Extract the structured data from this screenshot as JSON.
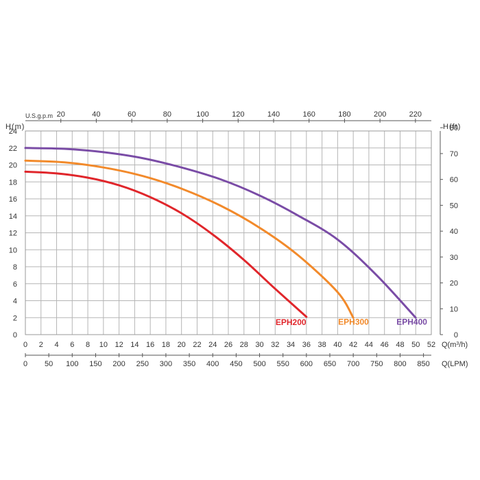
{
  "chart_data": {
    "type": "line",
    "title": "",
    "axes": {
      "bottom_flow": {
        "unit_label": "Q(m",
        "unit_sup": "3",
        "unit_tail": "/h)",
        "min": 0,
        "max": 52,
        "step": 2,
        "ticks": [
          "0",
          "2",
          "4",
          "6",
          "8",
          "10",
          "12",
          "14",
          "16",
          "18",
          "20",
          "22",
          "24",
          "26",
          "28",
          "30",
          "32",
          "34",
          "36",
          "38",
          "40",
          "42",
          "44",
          "46",
          "48",
          "50",
          "52"
        ]
      },
      "bottom_lpm": {
        "unit_label": "Q(LPM)",
        "ticks": [
          "0",
          "50",
          "100",
          "150",
          "200",
          "250",
          "300",
          "350",
          "400",
          "450",
          "500",
          "550",
          "600",
          "650",
          "700",
          "750",
          "800",
          "850"
        ]
      },
      "top_gpm": {
        "unit_label": "U.S.g.p.m",
        "ticks": [
          "20",
          "40",
          "60",
          "80",
          "100",
          "120",
          "140",
          "160",
          "180",
          "200",
          "220"
        ]
      },
      "left_head_m": {
        "unit_label": "H(m)",
        "min": 0,
        "max": 24,
        "step": 2,
        "ticks": [
          "0",
          "2",
          "4",
          "6",
          "8",
          "10",
          "12",
          "14",
          "16",
          "18",
          "20",
          "22",
          "24"
        ]
      },
      "right_head_ft": {
        "unit_label": "H(ft)",
        "ticks": [
          "0",
          "10",
          "20",
          "30",
          "40",
          "50",
          "60",
          "70",
          "80"
        ]
      }
    },
    "grid": true,
    "series": [
      {
        "name": "EPH200",
        "color": "#e0262b",
        "x": [
          0,
          4,
          8,
          12,
          16,
          20,
          24,
          28,
          32,
          36
        ],
        "y": [
          19.2,
          19.0,
          18.5,
          17.6,
          16.2,
          14.3,
          11.8,
          8.8,
          5.4,
          2.1
        ]
      },
      {
        "name": "EPH300",
        "color": "#f28a2b",
        "x": [
          0,
          5,
          10,
          15,
          20,
          25,
          30,
          35,
          40,
          42
        ],
        "y": [
          20.5,
          20.3,
          19.7,
          18.7,
          17.2,
          15.2,
          12.6,
          9.3,
          5.0,
          2.0
        ]
      },
      {
        "name": "EPH400",
        "color": "#7a4ca6",
        "x": [
          0,
          5,
          10,
          15,
          20,
          25,
          30,
          35,
          40,
          45,
          50
        ],
        "y": [
          22.0,
          21.9,
          21.5,
          20.8,
          19.7,
          18.3,
          16.4,
          14.0,
          11.2,
          7.0,
          2.0
        ]
      }
    ]
  }
}
